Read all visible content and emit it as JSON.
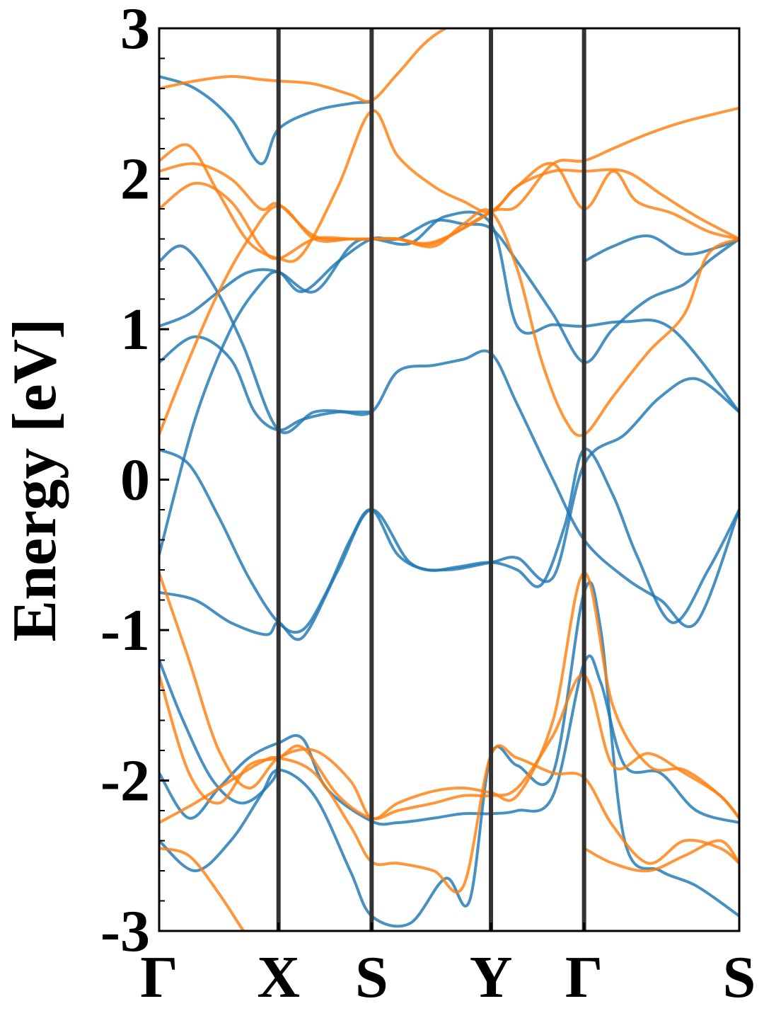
{
  "chart_data": {
    "type": "line",
    "title": "",
    "xlabel": "",
    "ylabel": "Energy [eV]",
    "ylim": [
      -3,
      3
    ],
    "yticks": [
      -3,
      -2,
      -1,
      0,
      1,
      2,
      3
    ],
    "ytick_labels": [
      "-3",
      "-2",
      "-1",
      "0",
      "1",
      "2",
      "3"
    ],
    "xlim": [
      0,
      4.86
    ],
    "kpoints": [
      {
        "label": "Γ",
        "x": 0.0
      },
      {
        "label": "X",
        "x": 1.0
      },
      {
        "label": "S",
        "x": 1.78
      },
      {
        "label": "Y",
        "x": 2.78
      },
      {
        "label": "Γ",
        "x": 3.56
      },
      {
        "label": "S",
        "x": 4.86
      }
    ],
    "grid": false,
    "legend": "none",
    "colors": {
      "band_set_1": "#1f77b4",
      "band_set_2": "#ff7f0e",
      "kpoint_line": "#333333"
    },
    "series": [
      {
        "color": "#1f77b4",
        "x": [
          0,
          0.25,
          0.5,
          0.75,
          1.0,
          1.2,
          1.4,
          1.6,
          1.78,
          2.0,
          2.25,
          2.5,
          2.78,
          3.0,
          3.2,
          3.4,
          3.56,
          3.8,
          4.0,
          4.3,
          4.6,
          4.86
        ],
        "y": [
          0.2,
          0.1,
          -0.25,
          -0.65,
          -0.95,
          -1.0,
          -0.75,
          -0.4,
          -0.2,
          -0.5,
          -0.6,
          -0.58,
          -0.55,
          -0.6,
          -0.7,
          -0.3,
          0.2,
          -0.1,
          -0.5,
          -0.95,
          -0.6,
          -0.2
        ]
      },
      {
        "color": "#1f77b4",
        "x": [
          0,
          0.3,
          0.6,
          0.85,
          1.0,
          1.2,
          1.5,
          1.78,
          2.0,
          2.3,
          2.55,
          2.78,
          3.0,
          3.3,
          3.56,
          3.8,
          4.1,
          4.4,
          4.6,
          4.86
        ],
        "y": [
          -0.5,
          0.4,
          1.0,
          1.3,
          1.38,
          1.25,
          1.45,
          1.6,
          1.6,
          1.72,
          1.7,
          1.67,
          1.45,
          1.1,
          0.78,
          1.0,
          1.2,
          1.3,
          1.45,
          1.6
        ]
      },
      {
        "color": "#1f77b4",
        "x": [
          0,
          0.3,
          0.6,
          0.8,
          1.0,
          1.2,
          1.5,
          1.78,
          2.0,
          2.3,
          2.55,
          2.78,
          3.0,
          3.3,
          3.56,
          3.9,
          4.2,
          4.5,
          4.86
        ],
        "y": [
          0.78,
          0.95,
          0.8,
          0.45,
          0.33,
          0.4,
          0.45,
          0.45,
          0.72,
          0.76,
          0.8,
          0.84,
          0.5,
          0.0,
          -0.4,
          -0.65,
          -0.8,
          -0.95,
          -0.2
        ]
      },
      {
        "color": "#1f77b4",
        "x": [
          0,
          0.3,
          0.6,
          0.9,
          1.0,
          1.2,
          1.5,
          1.78,
          2.1,
          2.4,
          2.78,
          3.0,
          3.3,
          3.56,
          3.9,
          4.2,
          4.5,
          4.86
        ],
        "y": [
          -0.75,
          -0.8,
          -0.95,
          -1.03,
          -0.95,
          -1.05,
          -0.6,
          -0.2,
          -0.55,
          -0.6,
          -0.55,
          -0.52,
          -0.65,
          0.1,
          0.3,
          0.55,
          0.67,
          0.45
        ]
      },
      {
        "color": "#1f77b4",
        "x": [
          0,
          0.25,
          0.5,
          0.75,
          1.0,
          1.3,
          1.6,
          1.78,
          2.1,
          2.4,
          2.78,
          3.0,
          3.3,
          3.56,
          3.9,
          4.3,
          4.86
        ],
        "y": [
          1.02,
          1.1,
          1.25,
          1.38,
          1.38,
          1.25,
          1.55,
          1.6,
          1.57,
          1.75,
          1.7,
          1.02,
          1.03,
          1.02,
          1.05,
          1.0,
          0.45
        ]
      },
      {
        "color": "#1f77b4",
        "x": [
          0,
          0.2,
          0.45,
          0.7,
          1.0,
          1.3,
          1.6,
          1.78
        ],
        "y": [
          1.45,
          1.55,
          1.3,
          0.9,
          0.33,
          0.45,
          0.45,
          0.45
        ]
      },
      {
        "color": "#1f77b4",
        "x": [
          0,
          0.3,
          0.6,
          0.85,
          1.0,
          1.3,
          1.6,
          1.78
        ],
        "y": [
          2.68,
          2.6,
          2.4,
          2.1,
          2.33,
          2.45,
          2.5,
          2.51
        ]
      },
      {
        "color": "#1f77b4",
        "x": [
          3.56,
          3.8,
          4.1,
          4.4,
          4.7,
          4.86
        ],
        "y": [
          1.45,
          1.55,
          1.62,
          1.5,
          1.55,
          1.6
        ]
      },
      {
        "color": "#1f77b4",
        "x": [
          0,
          0.2,
          0.45,
          0.7,
          0.95,
          1.0
        ],
        "y": [
          -1.2,
          -1.6,
          -2.0,
          -2.15,
          -2.0,
          -1.85
        ]
      },
      {
        "color": "#1f77b4",
        "x": [
          0,
          0.25,
          0.5,
          0.75,
          1.0,
          1.2,
          1.4,
          1.78,
          2.0,
          2.3,
          2.55,
          2.78,
          3.0,
          3.3,
          3.56,
          3.7,
          3.9,
          4.2,
          4.5,
          4.86
        ],
        "y": [
          -1.95,
          -2.25,
          -2.05,
          -1.85,
          -1.75,
          -1.72,
          -2.05,
          -2.27,
          -2.28,
          -2.25,
          -2.22,
          -2.22,
          -2.2,
          -2.1,
          -1.22,
          -1.35,
          -1.9,
          -1.95,
          -2.2,
          -2.28
        ]
      },
      {
        "color": "#1f77b4",
        "x": [
          0,
          0.3,
          0.6,
          0.85,
          1.0,
          1.3,
          1.6,
          1.78,
          2.1,
          2.4,
          2.6,
          2.78,
          3.0,
          3.3,
          3.56,
          3.7,
          3.9,
          4.2,
          4.5,
          4.86
        ],
        "y": [
          -2.4,
          -2.6,
          -2.4,
          -2.1,
          -1.93,
          -2.1,
          -2.6,
          -2.9,
          -2.95,
          -2.65,
          -2.8,
          -1.83,
          -1.9,
          -1.95,
          -0.75,
          -1.0,
          -2.4,
          -2.6,
          -2.7,
          -2.9
        ]
      },
      {
        "color": "#ff7f0e",
        "x": [
          0,
          0.25,
          0.5,
          0.75,
          1.0,
          1.3,
          1.6,
          1.78,
          2.0,
          2.3,
          2.55,
          2.78,
          3.0,
          3.2,
          3.4,
          3.56,
          3.8,
          4.1,
          4.4,
          4.6,
          4.86
        ],
        "y": [
          0.3,
          0.8,
          1.25,
          1.6,
          1.82,
          1.6,
          1.6,
          1.6,
          1.6,
          1.55,
          1.7,
          1.78,
          1.4,
          0.8,
          0.4,
          0.3,
          0.55,
          0.85,
          1.1,
          1.5,
          1.6
        ]
      },
      {
        "color": "#ff7f0e",
        "x": [
          0,
          0.25,
          0.5,
          0.75,
          1.0,
          1.2,
          1.5,
          1.78,
          2.0,
          2.3,
          2.55,
          2.78,
          3.0,
          3.3,
          3.56,
          3.9,
          4.2,
          4.5,
          4.86
        ],
        "y": [
          2.12,
          2.22,
          1.9,
          1.58,
          1.47,
          1.5,
          1.95,
          2.45,
          2.15,
          1.95,
          1.85,
          1.78,
          1.95,
          2.05,
          2.05,
          2.05,
          1.9,
          1.75,
          1.6
        ]
      },
      {
        "color": "#ff7f0e",
        "x": [
          0,
          0.3,
          0.6,
          0.85,
          1.0,
          1.3,
          1.6,
          1.78,
          2.0,
          2.3,
          2.78,
          3.0,
          3.3,
          3.56,
          3.8,
          4.0,
          4.3,
          4.6,
          4.86
        ],
        "y": [
          1.8,
          1.97,
          1.85,
          1.55,
          1.47,
          1.6,
          1.6,
          1.6,
          1.6,
          1.58,
          1.78,
          1.95,
          2.1,
          1.8,
          2.05,
          1.85,
          1.77,
          1.65,
          1.6
        ]
      },
      {
        "color": "#ff7f0e",
        "x": [
          0,
          0.3,
          0.6,
          0.85,
          1.0,
          1.3,
          1.6,
          1.78,
          2.0,
          2.3,
          2.78,
          3.0,
          3.3,
          3.56,
          3.8,
          4.1,
          4.4,
          4.86
        ],
        "y": [
          2.05,
          2.1,
          2.0,
          1.8,
          1.83,
          1.62,
          1.6,
          1.6,
          1.6,
          1.57,
          1.78,
          1.82,
          2.1,
          2.12,
          2.2,
          2.3,
          2.38,
          2.47
        ]
      },
      {
        "color": "#ff7f0e",
        "x": [
          0,
          0.3,
          0.6,
          0.85,
          1.0,
          1.3,
          1.6,
          1.78,
          2.0,
          2.3,
          2.78
        ],
        "y": [
          2.6,
          2.65,
          2.68,
          2.66,
          2.65,
          2.63,
          2.56,
          2.52,
          2.7,
          2.95,
          3.15
        ]
      },
      {
        "color": "#ff7f0e",
        "x": [
          0,
          0.25,
          0.5,
          0.75,
          1.0,
          1.3,
          1.6,
          1.78,
          2.0,
          2.3,
          2.55,
          2.78,
          3.0,
          3.3,
          3.56,
          3.8,
          4.1,
          4.4,
          4.7,
          4.86
        ],
        "y": [
          -0.62,
          -1.2,
          -1.8,
          -2.05,
          -1.85,
          -1.8,
          -2.0,
          -2.25,
          -2.15,
          -2.07,
          -2.05,
          -2.08,
          -2.1,
          -1.6,
          -0.62,
          -1.5,
          -1.9,
          -1.93,
          -2.1,
          -2.25
        ]
      },
      {
        "color": "#ff7f0e",
        "x": [
          0,
          0.25,
          0.5,
          0.75,
          1.0,
          1.2,
          1.5,
          1.78,
          2.0,
          2.3,
          2.55,
          2.78,
          3.0,
          3.3,
          3.56,
          3.8,
          4.1,
          4.4,
          4.7,
          4.86
        ],
        "y": [
          -1.3,
          -1.95,
          -2.15,
          -1.9,
          -1.85,
          -1.78,
          -2.1,
          -2.25,
          -2.2,
          -2.15,
          -2.1,
          -2.1,
          -2.05,
          -1.7,
          -1.3,
          -1.9,
          -1.82,
          -1.95,
          -2.1,
          -2.25
        ]
      },
      {
        "color": "#ff7f0e",
        "x": [
          0,
          0.3,
          0.6,
          0.85,
          1.0,
          1.3,
          1.6,
          1.78,
          2.0,
          2.3,
          2.55,
          2.78,
          3.0,
          3.3,
          3.56,
          3.8,
          4.1,
          4.4,
          4.7,
          4.86
        ],
        "y": [
          -2.28,
          -2.15,
          -2.0,
          -1.88,
          -1.85,
          -1.95,
          -2.3,
          -2.54,
          -2.55,
          -2.6,
          -2.7,
          -1.83,
          -1.85,
          -1.95,
          -1.98,
          -2.3,
          -2.55,
          -2.4,
          -2.45,
          -2.55
        ]
      },
      {
        "color": "#ff7f0e",
        "x": [
          0,
          0.25,
          0.5,
          0.75,
          1.0,
          1.2,
          1.4,
          1.78
        ],
        "y": [
          -2.45,
          -2.5,
          -2.75,
          -3.05,
          -3.3,
          -3.3,
          -3.3,
          -3.3
        ]
      },
      {
        "color": "#ff7f0e",
        "x": [
          3.56,
          3.8,
          4.1,
          4.4,
          4.7,
          4.86
        ],
        "y": [
          -2.45,
          -2.55,
          -2.6,
          -2.5,
          -2.4,
          -2.55
        ]
      }
    ]
  }
}
